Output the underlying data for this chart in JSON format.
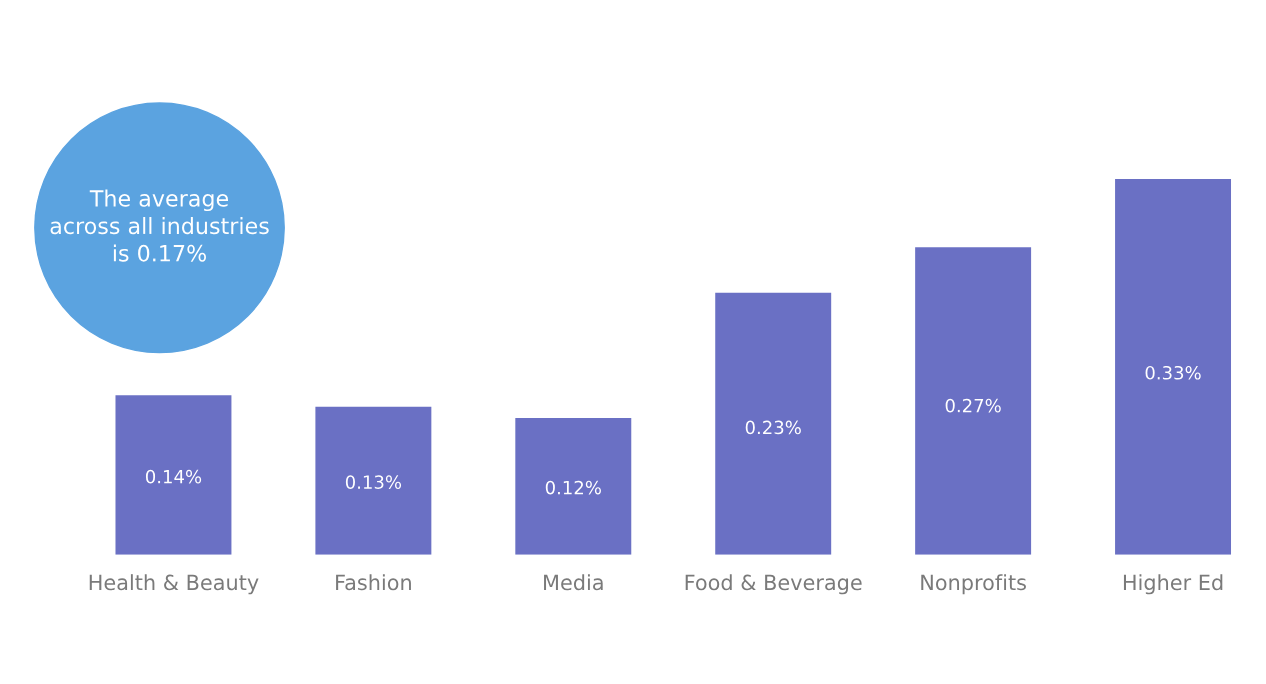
{
  "chart_data": {
    "type": "bar",
    "categories": [
      "Health & Beauty",
      "Fashion",
      "Media",
      "Food & Beverage",
      "Nonprofits",
      "Higher Ed"
    ],
    "values": [
      0.14,
      0.13,
      0.12,
      0.23,
      0.27,
      0.33
    ],
    "value_labels": [
      "0.14%",
      "0.13%",
      "0.12%",
      "0.23%",
      "0.27%",
      "0.33%"
    ],
    "color": "#6a70c4",
    "grid": false,
    "legend": false,
    "annotations": [
      "The average\nacross all industries\nis 0.17%"
    ]
  }
}
